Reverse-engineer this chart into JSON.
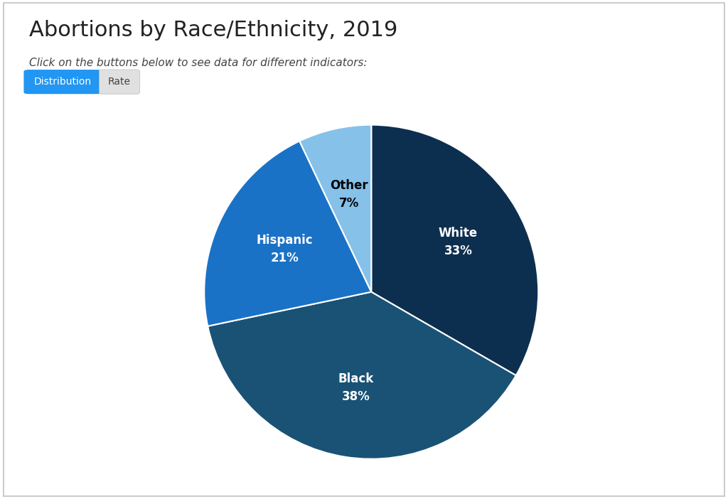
{
  "title": "Abortions by Race/Ethnicity, 2019",
  "subtitle": "Click on the buttons below to see data for different indicators:",
  "button_active": "Distribution",
  "button_inactive": "Rate",
  "labels": [
    "White",
    "Black",
    "Hispanic",
    "Other"
  ],
  "values": [
    33,
    38,
    21,
    7
  ],
  "colors": [
    "#0d2f4f",
    "#1a5276",
    "#1a72c7",
    "#85c1e9"
  ],
  "label_colors": [
    "white",
    "white",
    "white",
    "black"
  ],
  "startangle": 90,
  "background_color": "#ffffff",
  "title_fontsize": 22,
  "subtitle_fontsize": 11,
  "label_fontsize": 12,
  "button_active_color": "#2196F3",
  "button_inactive_color": "#e0e0e0",
  "border_color": "#cccccc"
}
